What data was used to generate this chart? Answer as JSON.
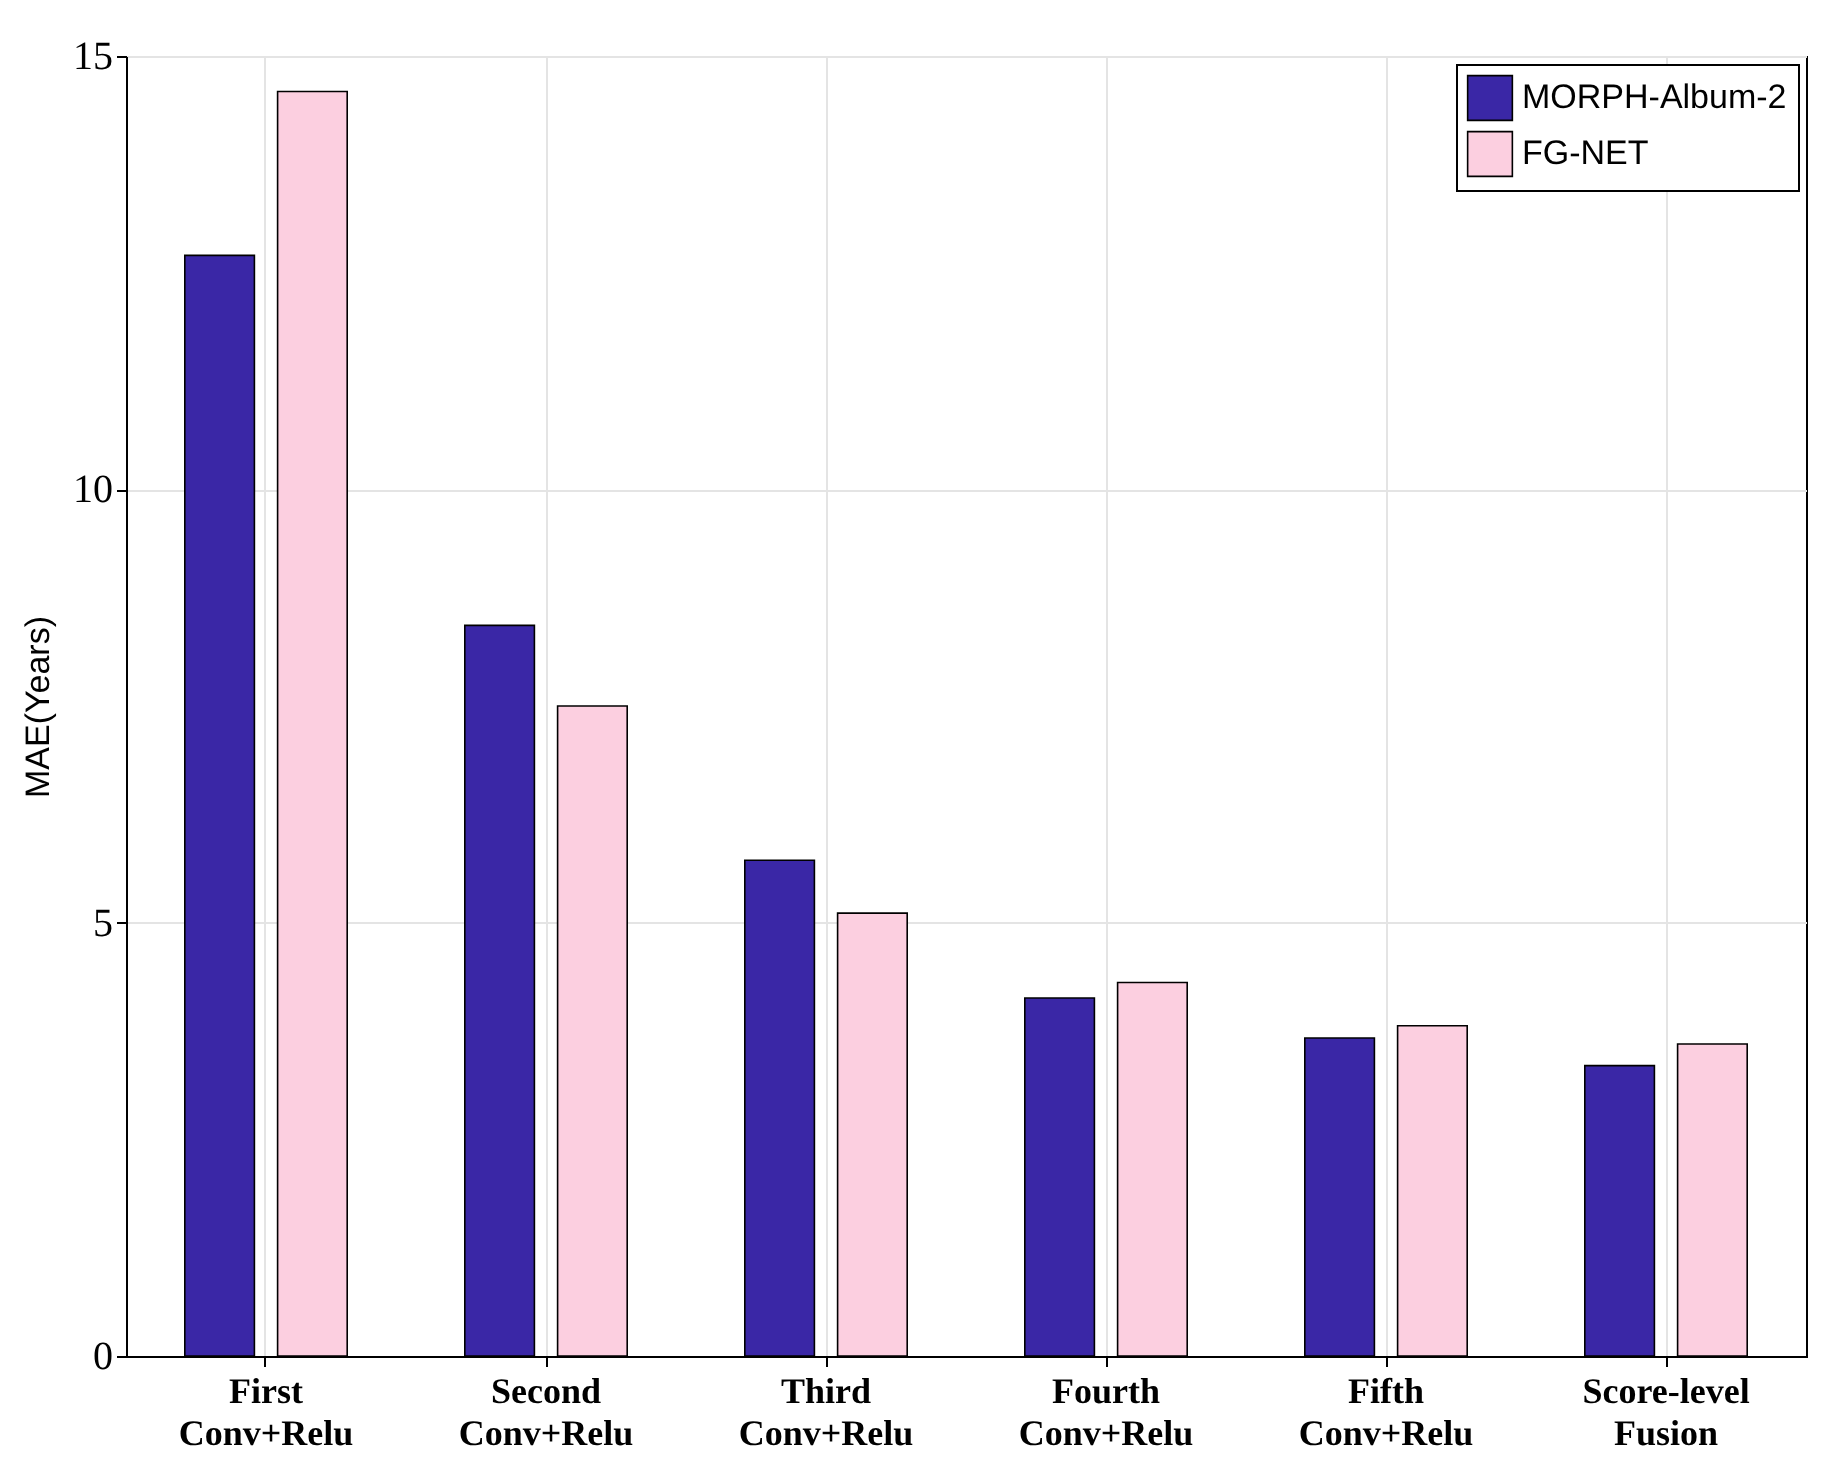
{
  "chart_data": {
    "type": "bar",
    "ylabel": "MAE(Years)",
    "categories": [
      "First Conv+Relu",
      "Second Conv+Relu",
      "Third Conv+Relu",
      "Fourth Conv+Relu",
      "Fifth Conv+Relu",
      "Score-level Fusion"
    ],
    "series": [
      {
        "name": "MORPH-Album-2",
        "color": "#3a27a6",
        "values": [
          12.7,
          8.43,
          5.72,
          4.13,
          3.67,
          3.35
        ]
      },
      {
        "name": "FG-NET",
        "color": "#fccfe0",
        "values": [
          14.59,
          7.5,
          5.11,
          4.31,
          3.81,
          3.6
        ]
      }
    ],
    "ylim": [
      0,
      15
    ],
    "yticks": [
      0,
      5,
      10,
      15
    ],
    "grid": true,
    "legend": "top right"
  }
}
